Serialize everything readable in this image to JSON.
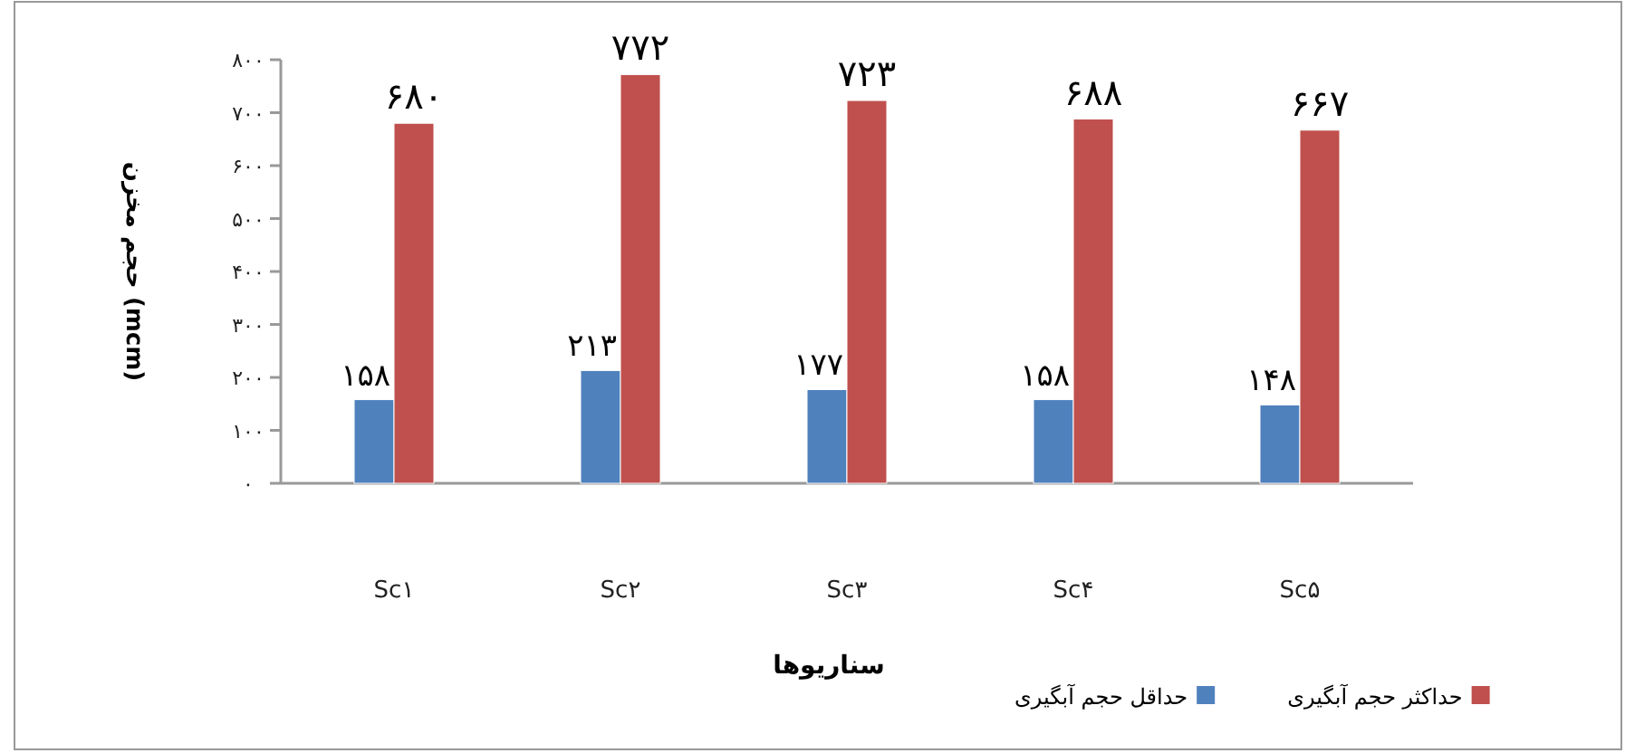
{
  "chart_data": {
    "type": "bar",
    "xlabel": "سناریوها",
    "ylabel": "حجم مخزن (mcm)",
    "categories": [
      "Sc۱",
      "Sc۲",
      "Sc۳",
      "Sc۴",
      "Sc۵"
    ],
    "series": [
      {
        "name": "حداقل حجم آبگیری",
        "color": "#4f81bd",
        "values": [
          158,
          213,
          177,
          158,
          148
        ],
        "value_labels": [
          "۱۵۸",
          "۲۱۳",
          "۱۷۷",
          "۱۵۸",
          "۱۴۸"
        ]
      },
      {
        "name": "حداکثر حجم آبگیری",
        "color": "#c0504d",
        "values": [
          680,
          772,
          723,
          688,
          667
        ],
        "value_labels": [
          "۶۸۰",
          "۷۷۲",
          "۷۲۳",
          "۶۸۸",
          "۶۶۷"
        ]
      }
    ],
    "ylim": [
      0,
      800
    ],
    "yticks": [
      {
        "value": 0,
        "label": "۰"
      },
      {
        "value": 100,
        "label": "۱۰۰"
      },
      {
        "value": 200,
        "label": "۲۰۰"
      },
      {
        "value": 300,
        "label": "۳۰۰"
      },
      {
        "value": 400,
        "label": "۴۰۰"
      },
      {
        "value": 500,
        "label": "۵۰۰"
      },
      {
        "value": 600,
        "label": "۶۰۰"
      },
      {
        "value": 700,
        "label": "۷۰۰"
      },
      {
        "value": 800,
        "label": "۸۰۰"
      }
    ],
    "grid": false,
    "legend": "bottom right"
  }
}
